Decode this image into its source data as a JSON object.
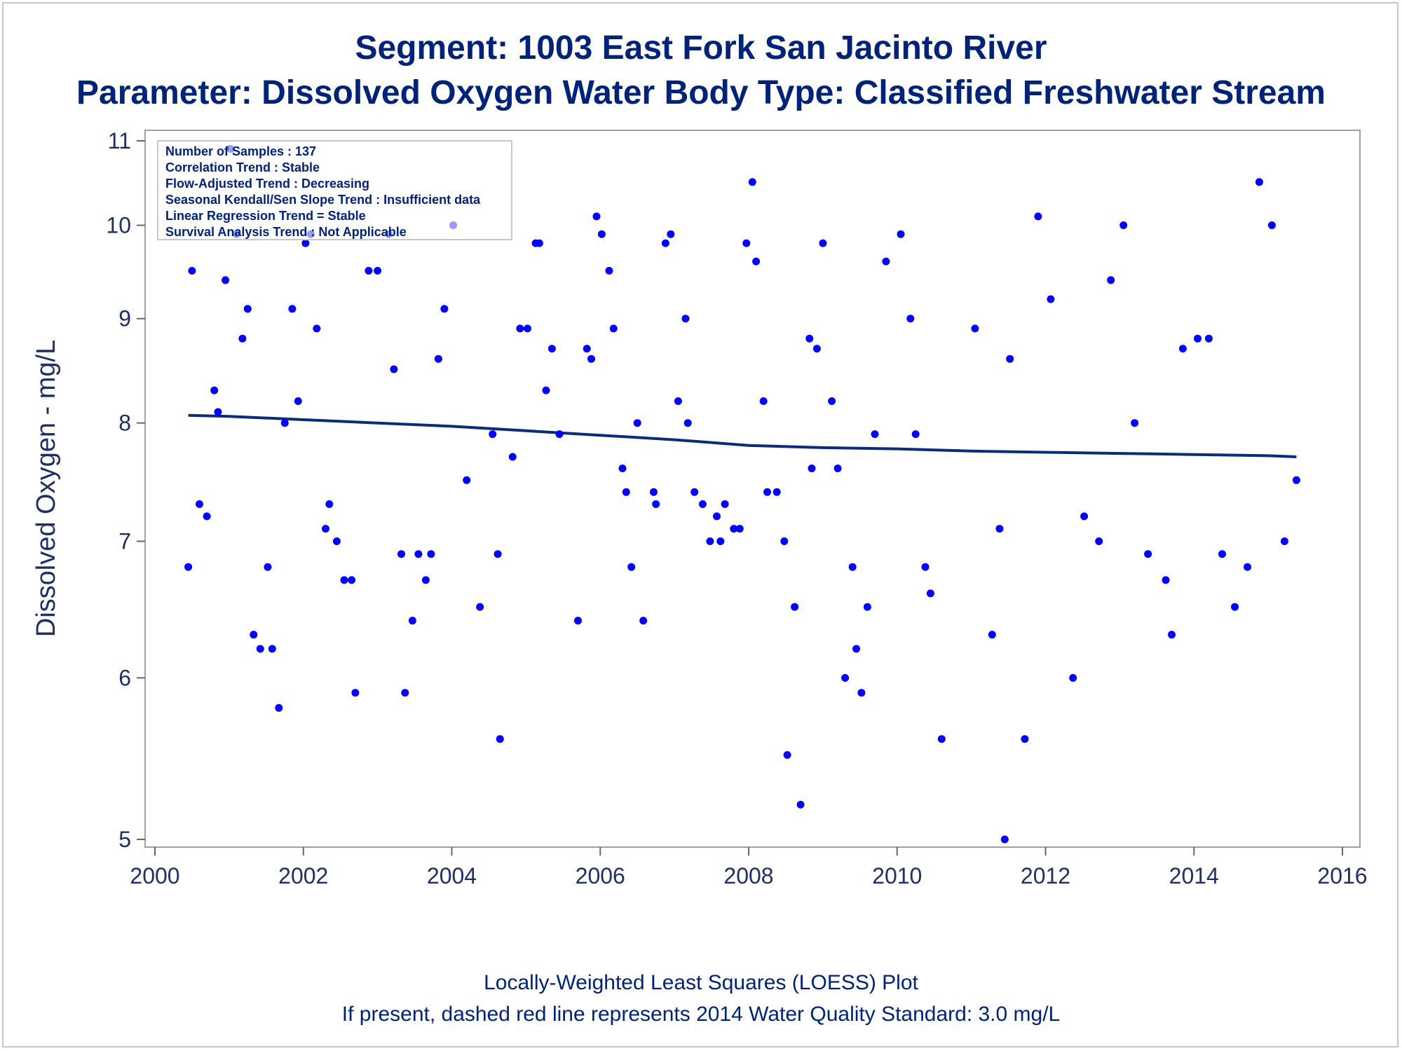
{
  "chart_data": {
    "type": "scatter",
    "title": "Segment: 1003  East Fork San Jacinto River",
    "subtitle": "Parameter: Dissolved Oxygen   Water Body Type: Classified Freshwater Stream",
    "xlabel": "",
    "ylabel": "Dissolved Oxygen - mg/L",
    "xlim": [
      2000,
      2016
    ],
    "ylim": [
      5,
      11
    ],
    "y_scale": "log",
    "x_ticks": [
      2000,
      2002,
      2004,
      2006,
      2008,
      2010,
      2012,
      2014,
      2016
    ],
    "y_ticks": [
      5,
      6,
      7,
      8,
      9,
      10,
      11
    ],
    "grid": false,
    "point_color": "#0000ff",
    "trend_color": "#0a2c7a",
    "stats_box": [
      "Number of Samples : 137",
      "Correlation Trend : Stable",
      "Flow-Adjusted Trend : Decreasing",
      "Seasonal Kendall/Sen Slope Trend : Insufficient data",
      "Linear Regression Trend = Stable",
      "Survival Analysis Trend : Not Applicable"
    ],
    "footnotes": [
      "Locally-Weighted Least Squares (LOESS) Plot",
      "If present, dashed red line represents 2014 Water Quality Standard: 3.0 mg/L"
    ],
    "series": [
      {
        "kind": "points",
        "points": [
          [
            2000.45,
            6.8
          ],
          [
            2000.5,
            9.5
          ],
          [
            2000.6,
            7.3
          ],
          [
            2000.7,
            7.2
          ],
          [
            2000.8,
            8.3
          ],
          [
            2000.85,
            8.1
          ],
          [
            2000.95,
            9.4
          ],
          [
            2001.02,
            10.9
          ],
          [
            2001.1,
            9.9
          ],
          [
            2001.18,
            8.8
          ],
          [
            2001.25,
            9.1
          ],
          [
            2001.33,
            6.3
          ],
          [
            2001.42,
            6.2
          ],
          [
            2001.52,
            6.8
          ],
          [
            2001.58,
            6.2
          ],
          [
            2001.67,
            5.8
          ],
          [
            2001.75,
            8.0
          ],
          [
            2001.85,
            9.1
          ],
          [
            2001.93,
            8.2
          ],
          [
            2002.03,
            9.8
          ],
          [
            2002.1,
            9.9
          ],
          [
            2002.18,
            8.9
          ],
          [
            2002.3,
            7.1
          ],
          [
            2002.35,
            7.3
          ],
          [
            2002.45,
            7.0
          ],
          [
            2002.55,
            6.7
          ],
          [
            2002.65,
            6.7
          ],
          [
            2002.7,
            5.9
          ],
          [
            2002.88,
            9.5
          ],
          [
            2003.0,
            9.5
          ],
          [
            2003.15,
            9.9
          ],
          [
            2003.22,
            8.5
          ],
          [
            2003.32,
            6.9
          ],
          [
            2003.37,
            5.9
          ],
          [
            2003.47,
            6.4
          ],
          [
            2003.55,
            6.9
          ],
          [
            2003.65,
            6.7
          ],
          [
            2003.72,
            6.9
          ],
          [
            2003.82,
            8.6
          ],
          [
            2003.9,
            9.1
          ],
          [
            2004.02,
            10.0
          ],
          [
            2004.2,
            7.5
          ],
          [
            2004.38,
            6.5
          ],
          [
            2004.55,
            7.9
          ],
          [
            2004.62,
            6.9
          ],
          [
            2004.65,
            5.6
          ],
          [
            2004.82,
            7.7
          ],
          [
            2004.92,
            8.9
          ],
          [
            2005.02,
            8.9
          ],
          [
            2005.13,
            9.8
          ],
          [
            2005.18,
            9.8
          ],
          [
            2005.27,
            8.3
          ],
          [
            2005.35,
            8.7
          ],
          [
            2005.45,
            7.9
          ],
          [
            2005.7,
            6.4
          ],
          [
            2005.82,
            8.7
          ],
          [
            2005.88,
            8.6
          ],
          [
            2005.95,
            10.1
          ],
          [
            2006.02,
            9.9
          ],
          [
            2006.12,
            9.5
          ],
          [
            2006.18,
            8.9
          ],
          [
            2006.3,
            7.6
          ],
          [
            2006.35,
            7.4
          ],
          [
            2006.42,
            6.8
          ],
          [
            2006.5,
            8.0
          ],
          [
            2006.58,
            6.4
          ],
          [
            2006.72,
            7.4
          ],
          [
            2006.75,
            7.3
          ],
          [
            2006.88,
            9.8
          ],
          [
            2006.95,
            9.9
          ],
          [
            2007.05,
            8.2
          ],
          [
            2007.15,
            9.0
          ],
          [
            2007.18,
            8.0
          ],
          [
            2007.27,
            7.4
          ],
          [
            2007.38,
            7.3
          ],
          [
            2007.48,
            7.0
          ],
          [
            2007.57,
            7.2
          ],
          [
            2007.62,
            7.0
          ],
          [
            2007.68,
            7.3
          ],
          [
            2007.8,
            7.1
          ],
          [
            2007.88,
            7.1
          ],
          [
            2007.97,
            9.8
          ],
          [
            2008.05,
            10.5
          ],
          [
            2008.1,
            9.6
          ],
          [
            2008.2,
            8.2
          ],
          [
            2008.25,
            7.4
          ],
          [
            2008.38,
            7.4
          ],
          [
            2008.48,
            7.0
          ],
          [
            2008.52,
            5.5
          ],
          [
            2008.62,
            6.5
          ],
          [
            2008.7,
            5.2
          ],
          [
            2008.82,
            8.8
          ],
          [
            2008.85,
            7.6
          ],
          [
            2008.92,
            8.7
          ],
          [
            2009.0,
            9.8
          ],
          [
            2009.12,
            8.2
          ],
          [
            2009.2,
            7.6
          ],
          [
            2009.3,
            6.0
          ],
          [
            2009.4,
            6.8
          ],
          [
            2009.45,
            6.2
          ],
          [
            2009.52,
            5.9
          ],
          [
            2009.6,
            6.5
          ],
          [
            2009.7,
            7.9
          ],
          [
            2009.85,
            9.6
          ],
          [
            2010.05,
            9.9
          ],
          [
            2010.18,
            9.0
          ],
          [
            2010.25,
            7.9
          ],
          [
            2010.38,
            6.8
          ],
          [
            2010.45,
            6.6
          ],
          [
            2010.6,
            5.6
          ],
          [
            2011.05,
            8.9
          ],
          [
            2011.28,
            6.3
          ],
          [
            2011.38,
            7.1
          ],
          [
            2011.45,
            5.0
          ],
          [
            2011.52,
            8.6
          ],
          [
            2011.72,
            5.6
          ],
          [
            2011.9,
            10.1
          ],
          [
            2012.07,
            9.2
          ],
          [
            2012.37,
            6.0
          ],
          [
            2012.52,
            7.2
          ],
          [
            2012.72,
            7.0
          ],
          [
            2012.88,
            9.4
          ],
          [
            2013.05,
            10.0
          ],
          [
            2013.2,
            8.0
          ],
          [
            2013.38,
            6.9
          ],
          [
            2013.62,
            6.7
          ],
          [
            2013.7,
            6.3
          ],
          [
            2013.85,
            8.7
          ],
          [
            2014.05,
            8.8
          ],
          [
            2014.2,
            8.8
          ],
          [
            2014.38,
            6.9
          ],
          [
            2014.55,
            6.5
          ],
          [
            2014.72,
            6.8
          ],
          [
            2014.88,
            10.5
          ],
          [
            2015.05,
            10.0
          ],
          [
            2015.22,
            7.0
          ],
          [
            2015.38,
            7.5
          ]
        ]
      },
      {
        "kind": "loess-line",
        "points": [
          [
            2000.45,
            8.07
          ],
          [
            2001.0,
            8.06
          ],
          [
            2002.0,
            8.03
          ],
          [
            2003.0,
            8.0
          ],
          [
            2004.0,
            7.97
          ],
          [
            2005.0,
            7.93
          ],
          [
            2006.0,
            7.89
          ],
          [
            2007.0,
            7.85
          ],
          [
            2008.0,
            7.8
          ],
          [
            2009.0,
            7.78
          ],
          [
            2010.0,
            7.77
          ],
          [
            2011.0,
            7.75
          ],
          [
            2012.0,
            7.74
          ],
          [
            2013.0,
            7.73
          ],
          [
            2014.0,
            7.72
          ],
          [
            2015.0,
            7.71
          ],
          [
            2015.38,
            7.7
          ]
        ]
      }
    ]
  }
}
